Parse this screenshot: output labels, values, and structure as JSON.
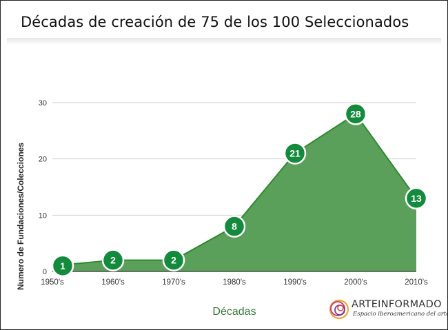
{
  "chart_data": {
    "type": "area",
    "title": "Décadas de creación de 75 de los 100 Seleccionados",
    "xlabel": "Décadas",
    "ylabel": "Numero de Fundaciones/Colecciones",
    "categories": [
      "1950's",
      "1960's",
      "1970's",
      "1980's",
      "1990's",
      "2000's",
      "2010's"
    ],
    "values": [
      1,
      2,
      2,
      8,
      21,
      28,
      13
    ],
    "ylim": [
      0,
      30
    ],
    "yticks": [
      "0",
      "10",
      "20",
      "30"
    ],
    "grid": true,
    "legend": "none"
  },
  "colors": {
    "area_fill": "#5aa05a",
    "line": "#2d8a2d",
    "marker": "#138a3c",
    "xlabel": "#3b7a3b"
  },
  "brand": {
    "name": "ARTEINFORMADO",
    "tagline": "Espacio iberoamericano del arte",
    "logo_icon": "circles-logo-icon"
  }
}
